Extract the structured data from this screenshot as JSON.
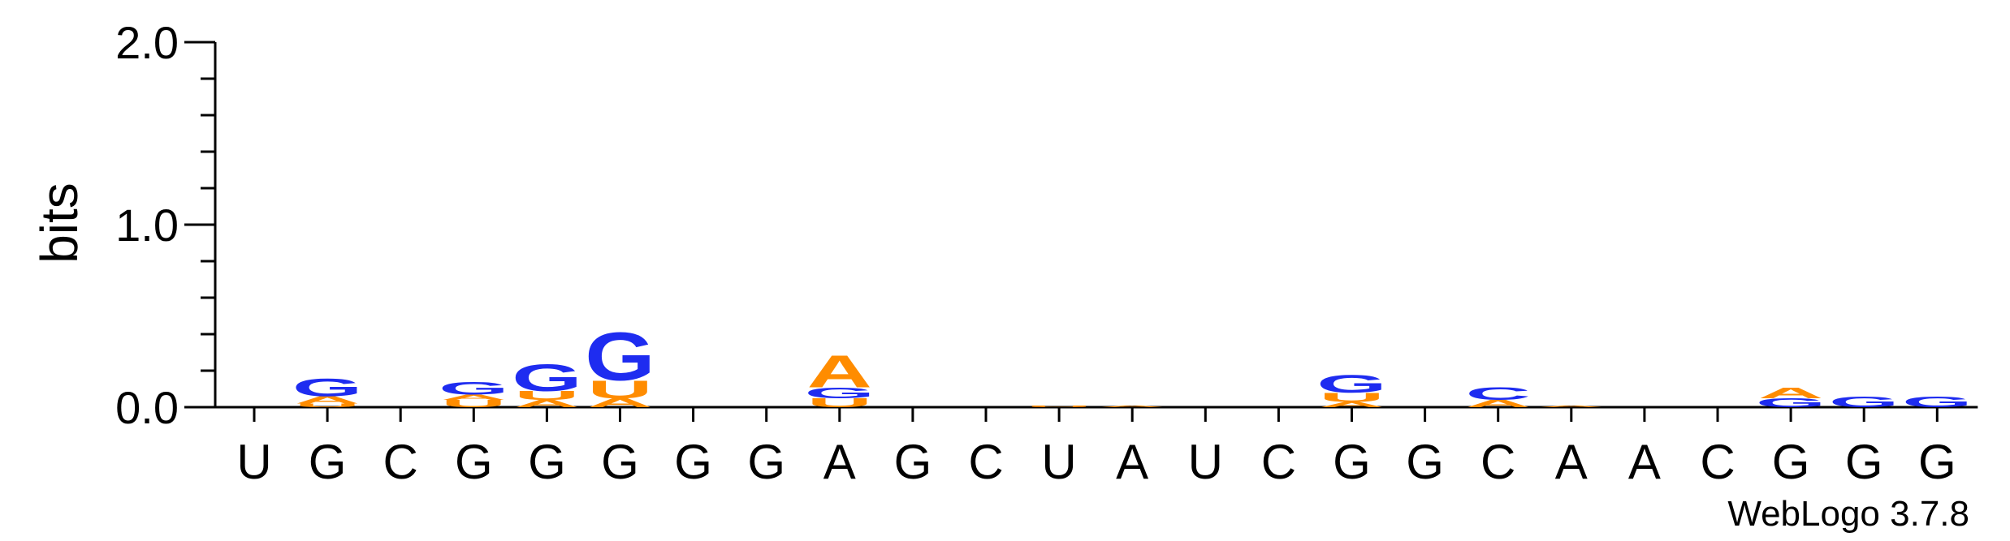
{
  "chart_data": {
    "type": "sequence-logo",
    "ylabel": "bits",
    "ylim": [
      0,
      2.0
    ],
    "yticks": [
      "0.0",
      "1.0",
      "2.0"
    ],
    "sequence": [
      "U",
      "G",
      "C",
      "G",
      "G",
      "G",
      "G",
      "G",
      "A",
      "G",
      "C",
      "U",
      "A",
      "U",
      "C",
      "G",
      "G",
      "C",
      "A",
      "A",
      "C",
      "G",
      "G",
      "G"
    ],
    "colors": {
      "G": "#1e2cf0",
      "A": "#ff8c00",
      "U": "#ff8c00",
      "C": "#1e2cf0"
    },
    "stacks": [
      [],
      [
        {
          "letter": "U",
          "bits": 0.02
        },
        {
          "letter": "A",
          "bits": 0.04
        },
        {
          "letter": "G",
          "bits": 0.1
        }
      ],
      [],
      [
        {
          "letter": "U",
          "bits": 0.04
        },
        {
          "letter": "A",
          "bits": 0.03
        },
        {
          "letter": "G",
          "bits": 0.07
        }
      ],
      [
        {
          "letter": "A",
          "bits": 0.04
        },
        {
          "letter": "U",
          "bits": 0.05
        },
        {
          "letter": "G",
          "bits": 0.15
        }
      ],
      [
        {
          "letter": "A",
          "bits": 0.05
        },
        {
          "letter": "U",
          "bits": 0.1
        },
        {
          "letter": "G",
          "bits": 0.27
        }
      ],
      [],
      [],
      [
        {
          "letter": "U",
          "bits": 0.05
        },
        {
          "letter": "G",
          "bits": 0.06
        },
        {
          "letter": "A",
          "bits": 0.18
        }
      ],
      [],
      [],
      [
        {
          "letter": "U",
          "bits": 0.01
        }
      ],
      [
        {
          "letter": "A",
          "bits": 0.01
        }
      ],
      [],
      [],
      [
        {
          "letter": "A",
          "bits": 0.03
        },
        {
          "letter": "U",
          "bits": 0.05
        },
        {
          "letter": "G",
          "bits": 0.1
        }
      ],
      [],
      [
        {
          "letter": "A",
          "bits": 0.04
        },
        {
          "letter": "C",
          "bits": 0.07
        }
      ],
      [
        {
          "letter": "A",
          "bits": 0.01
        }
      ],
      [],
      [],
      [
        {
          "letter": "G",
          "bits": 0.05
        },
        {
          "letter": "A",
          "bits": 0.06
        }
      ],
      [
        {
          "letter": "G",
          "bits": 0.06
        }
      ],
      [
        {
          "letter": "G",
          "bits": 0.06
        }
      ]
    ]
  },
  "credit": "WebLogo 3.7.8"
}
